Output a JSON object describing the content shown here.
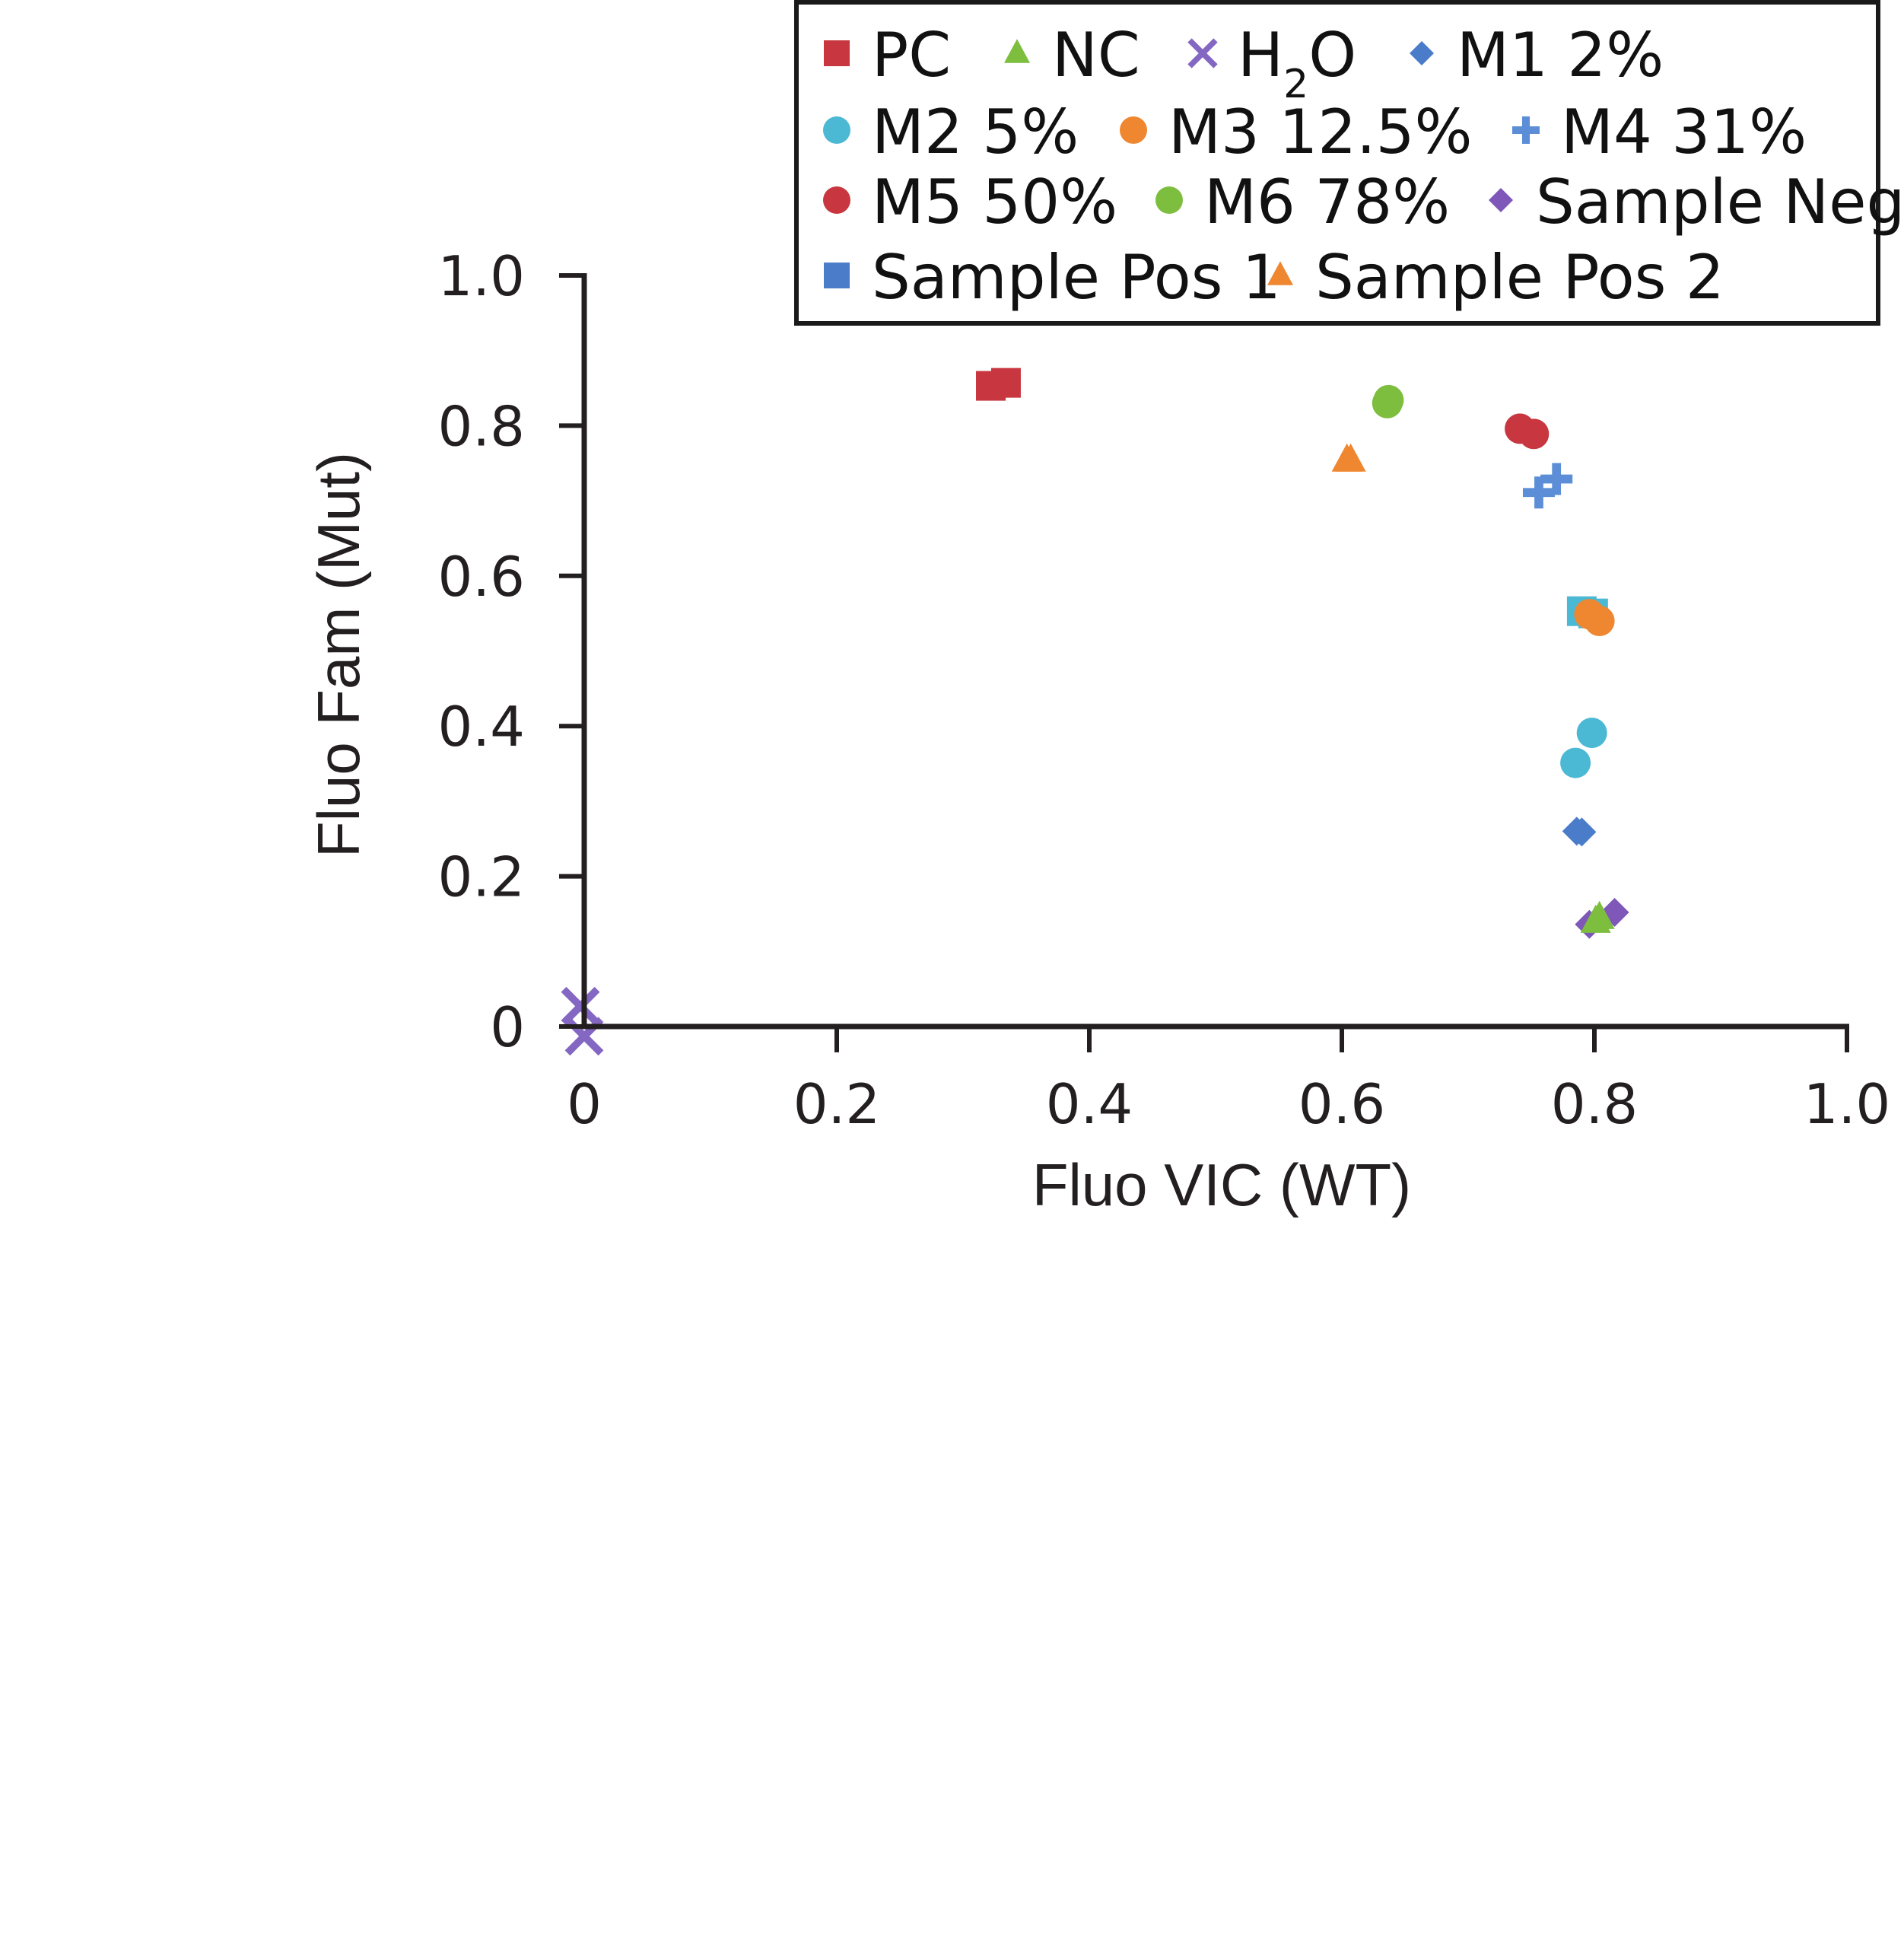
{
  "chart_data": {
    "type": "scatter",
    "title": "",
    "xlabel": "Fluo VIC (WT)",
    "ylabel": "Fluo Fam (Mut)",
    "xlim": [
      0,
      1.0
    ],
    "ylim": [
      0,
      1.0
    ],
    "x_ticks": [
      0,
      0.2,
      0.4,
      0.6,
      0.8,
      1.0
    ],
    "x_tick_labels": [
      "0",
      "0.2",
      "0.4",
      "0.6",
      "0.8",
      "1.0"
    ],
    "y_ticks": [
      0,
      0.2,
      0.4,
      0.6,
      0.8,
      1.0
    ],
    "y_tick_labels": [
      "0",
      "0.2",
      "0.4",
      "0.6",
      "0.8",
      "1.0"
    ],
    "grid": false,
    "legend_position": "top-right",
    "series": [
      {
        "name": "PC",
        "marker": "square",
        "color": "#C8363F",
        "points": [
          {
            "x": 0.322,
            "y": 0.853
          },
          {
            "x": 0.334,
            "y": 0.857
          }
        ]
      },
      {
        "name": "NC",
        "marker": "triangle",
        "color": "#7DBE3F",
        "points": [
          {
            "x": 0.801,
            "y": 0.14
          },
          {
            "x": 0.804,
            "y": 0.145
          }
        ]
      },
      {
        "name": "H2O",
        "label_main": "H",
        "label_sub": "2",
        "label_tail": "O",
        "marker": "cross",
        "color": "#8467C2",
        "points": [
          {
            "x": -0.003,
            "y": 0.027
          },
          {
            "x": 0.0,
            "y": -0.013
          }
        ]
      },
      {
        "name": "M1 2%",
        "marker": "diamond",
        "color": "#4A7CC9",
        "points": [
          {
            "x": 0.786,
            "y": 0.26
          },
          {
            "x": 0.79,
            "y": 0.259
          }
        ]
      },
      {
        "name": "M2 5%",
        "marker": "circle",
        "color": "#4BB8D4",
        "points": [
          {
            "x": 0.798,
            "y": 0.391
          },
          {
            "x": 0.785,
            "y": 0.351
          }
        ]
      },
      {
        "name": "M3 12.5%",
        "marker": "circle",
        "color": "#EF8730",
        "points": [
          {
            "x": 0.796,
            "y": 0.549
          },
          {
            "x": 0.804,
            "y": 0.54
          }
        ]
      },
      {
        "name": "M4 31%",
        "marker": "plus",
        "color": "#5B8ED6",
        "points": [
          {
            "x": 0.756,
            "y": 0.711
          },
          {
            "x": 0.77,
            "y": 0.729
          }
        ]
      },
      {
        "name": "M5 50%",
        "marker": "circle",
        "color": "#C8363F",
        "points": [
          {
            "x": 0.741,
            "y": 0.796
          },
          {
            "x": 0.752,
            "y": 0.789
          }
        ]
      },
      {
        "name": "M6 78%",
        "marker": "circle",
        "color": "#7DBE3F",
        "points": [
          {
            "x": 0.636,
            "y": 0.83
          },
          {
            "x": 0.637,
            "y": 0.834
          }
        ]
      },
      {
        "name": "Sample Neg",
        "marker": "diamond",
        "color": "#7E57B8",
        "points": [
          {
            "x": 0.796,
            "y": 0.136
          },
          {
            "x": 0.816,
            "y": 0.152
          }
        ]
      },
      {
        "name": "Sample Pos 1",
        "marker": "square",
        "color": "#4A7CC9",
        "point_color": "#4BB8D4",
        "points": [
          {
            "x": 0.79,
            "y": 0.553
          },
          {
            "x": 0.799,
            "y": 0.55
          }
        ]
      },
      {
        "name": "Sample Pos 2",
        "marker": "triangle",
        "color": "#EF8730",
        "points": [
          {
            "x": 0.604,
            "y": 0.754
          },
          {
            "x": 0.607,
            "y": 0.754
          }
        ]
      }
    ],
    "draw_order": [
      "PC",
      "H2O",
      "M1 2%",
      "M2 5%",
      "Sample Pos 1",
      "M3 12.5%",
      "M4 31%",
      "M5 50%",
      "M6 78%",
      "Sample Neg",
      "NC",
      "Sample Pos 2"
    ],
    "legend_rows": [
      [
        "PC",
        "NC",
        "H2O",
        "M1 2%"
      ],
      [
        "M2 5%",
        "M3 12.5%",
        "M4 31%"
      ],
      [
        "M5 50%",
        "M6 78%",
        "Sample Neg"
      ],
      [
        "Sample Pos 1",
        "Sample Pos 2"
      ]
    ]
  }
}
